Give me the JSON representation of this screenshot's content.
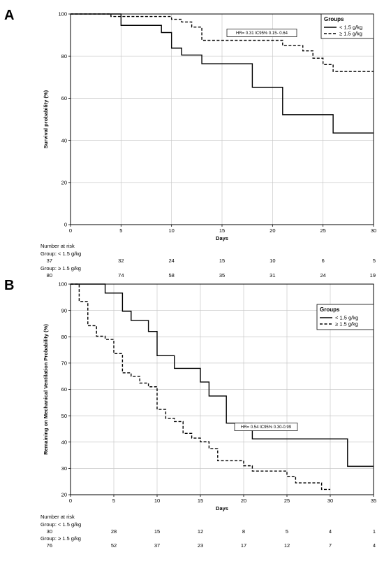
{
  "chart_data": [
    {
      "panel": "A",
      "type": "line",
      "step": true,
      "xlabel": "Days",
      "ylabel": "Survival probability (%)",
      "xlim": [
        0,
        30
      ],
      "ylim": [
        0,
        100
      ],
      "xticks": [
        0,
        5,
        10,
        15,
        20,
        25,
        30
      ],
      "yticks": [
        0,
        20,
        40,
        60,
        80,
        100
      ],
      "grid": true,
      "legend": {
        "title": "Groups",
        "placement": "top-right"
      },
      "annotation": "HR= 0.31 IC95% 0.15- 0.64",
      "series": [
        {
          "name": "< 1.5 g/kg",
          "style": "solid",
          "x": [
            0,
            5,
            9,
            10,
            11,
            13,
            18,
            21,
            26,
            30
          ],
          "y": [
            100,
            94.6,
            91.2,
            83.8,
            80.5,
            76.4,
            65.2,
            52.2,
            43.5,
            43.5
          ]
        },
        {
          "name": "≥ 1.5 g/kg",
          "style": "dashed",
          "x": [
            0,
            4,
            10,
            11,
            12,
            13,
            21,
            23,
            24,
            25,
            26,
            30
          ],
          "y": [
            100,
            98.8,
            97.5,
            96.2,
            93.8,
            87.5,
            85.0,
            82.5,
            79.0,
            76.0,
            72.7,
            72.7
          ]
        }
      ],
      "risk_table": {
        "header": "Number at risk",
        "groups": [
          {
            "label": "Group: < 1.5 g/kg",
            "values": [
              "37",
              "32",
              "24",
              "15",
              "10",
              "6",
              "5"
            ]
          },
          {
            "label": "Group: ≥ 1.5 g/kg",
            "values": [
              "80",
              "74",
              "58",
              "35",
              "31",
              "24",
              "19"
            ]
          }
        ]
      }
    },
    {
      "panel": "B",
      "type": "line",
      "step": true,
      "xlabel": "Days",
      "ylabel": "Remaining on Mechanical Ventilation Probability (%)",
      "xlim": [
        0,
        35
      ],
      "ylim": [
        20,
        100
      ],
      "xticks": [
        0,
        5,
        10,
        15,
        20,
        25,
        30,
        35
      ],
      "yticks": [
        20,
        30,
        40,
        50,
        60,
        70,
        80,
        90,
        100
      ],
      "grid": true,
      "legend": {
        "title": "Groups",
        "placement": "top-right"
      },
      "annotation": "HR= 0.54 IC95% 0.30-0.99",
      "series": [
        {
          "name": "< 1.5 g/kg",
          "style": "solid",
          "x": [
            0,
            4,
            6,
            7,
            9,
            10,
            12,
            15,
            16,
            18,
            21,
            32,
            35
          ],
          "y": [
            100,
            96.6,
            89.7,
            86.2,
            82.0,
            72.8,
            68.0,
            62.8,
            57.5,
            47.2,
            41.2,
            30.8,
            30.8
          ]
        },
        {
          "name": "≥ 1.5 g/kg",
          "style": "dashed",
          "x": [
            0,
            1,
            2,
            3,
            4,
            5,
            6,
            7,
            8,
            9,
            10,
            11,
            12,
            13,
            14,
            15,
            16,
            17,
            20,
            21,
            25,
            26,
            29,
            30
          ],
          "y": [
            100,
            93.4,
            84.2,
            80.2,
            79.0,
            73.6,
            66.3,
            65.0,
            62.4,
            61.0,
            52.4,
            49.0,
            47.8,
            43.3,
            41.5,
            40.1,
            37.5,
            32.9,
            31.0,
            29.0,
            27.0,
            24.5,
            22.0,
            22.0
          ]
        }
      ],
      "risk_table": {
        "header": "Number at risk",
        "groups": [
          {
            "label": "Group: < 1.5 g/kg",
            "values": [
              "30",
              "28",
              "15",
              "12",
              "8",
              "5",
              "4",
              "1"
            ]
          },
          {
            "label": "Group: ≥ 1.5 g/kg",
            "values": [
              "76",
              "52",
              "37",
              "23",
              "17",
              "12",
              "7",
              "4"
            ]
          }
        ]
      }
    }
  ]
}
